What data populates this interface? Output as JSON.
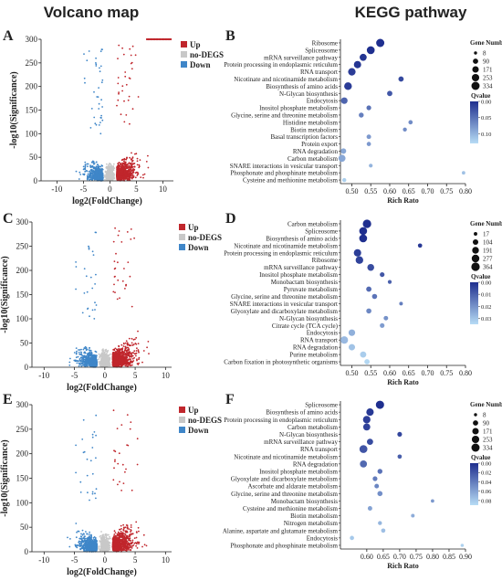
{
  "headers": {
    "left": "Volcano map",
    "right": "KEGG pathway"
  },
  "colors": {
    "up": "#c0262c",
    "nodeg": "#c8c8c8",
    "down": "#3f86c8",
    "dot_high": "#1f2f8f",
    "dot_low": "#b7dcf5"
  },
  "chart_data": [
    {
      "type": "scatter",
      "panel": "A",
      "name": "volcano-A",
      "xlabel": "log2(FoldChange)",
      "ylabel": "-log10(Significance)",
      "xlim": [
        -13,
        12
      ],
      "ylim": [
        0,
        300
      ],
      "xticks": [
        "-10",
        "-5",
        "0",
        "5",
        "10"
      ],
      "yticks": [
        "0",
        "50",
        "100",
        "150",
        "200",
        "250",
        "300"
      ],
      "legend": {
        "position": "top-right",
        "entries": [
          "Up",
          "no-DEGS",
          "Down"
        ]
      },
      "cap_x": [
        7,
        11.5
      ],
      "down_max_x": -1.3
    },
    {
      "type": "scatter",
      "panel": "B",
      "name": "kegg-B",
      "xlabel": "Rich Rato",
      "xlim": [
        0.47,
        0.8
      ],
      "xticks": [
        "0.50",
        "0.55",
        "0.60",
        "0.65",
        "0.70",
        "0.75",
        "0.80"
      ],
      "size_title": "Gene Number",
      "size_labels": [
        "8",
        "90",
        "171",
        "253",
        "334"
      ],
      "q_title": "Qvalue",
      "q_labels": [
        "0.00",
        "0.05",
        "0.10"
      ],
      "q_max": 0.13,
      "pathways": [
        "Ribosome",
        "Spliceosome",
        "mRNA surveillance pathway",
        "Protein processing in endoplasmic reticulum",
        "RNA transport",
        "Nicotinate and nicotinamide metabolism",
        "Biosynthesis of amino acids",
        "N-Glycan biosynthesis",
        "Endocytosis",
        "Inositol phosphate metabolism",
        "Glycine, serine and threonine metabolism",
        "Histidine metabolism",
        "Biotin metabolism",
        "Basal transcription factors",
        "Protein export",
        "RNA degradation",
        "Carbon metabolism",
        "SNARE interactions in vesicular transport",
        "Phosphonate and phosphinate metabolism",
        "Cysteine and methionine metabolism"
      ],
      "ratio": [
        0.575,
        0.55,
        0.53,
        0.515,
        0.5,
        0.63,
        0.49,
        0.6,
        0.48,
        0.545,
        0.525,
        0.655,
        0.64,
        0.545,
        0.545,
        0.478,
        0.474,
        0.55,
        0.795,
        0.48
      ],
      "genes": [
        334,
        300,
        220,
        240,
        260,
        90,
        280,
        90,
        180,
        60,
        70,
        40,
        30,
        50,
        40,
        100,
        220,
        25,
        15,
        30
      ],
      "qvalue": [
        0.0,
        0.0,
        0.005,
        0.005,
        0.01,
        0.02,
        0.01,
        0.03,
        0.04,
        0.05,
        0.06,
        0.07,
        0.07,
        0.08,
        0.08,
        0.09,
        0.09,
        0.1,
        0.11,
        0.12
      ]
    },
    {
      "type": "scatter",
      "panel": "C",
      "name": "volcano-C",
      "xlabel": "log2(FoldChange)",
      "ylabel": "-log10(Significance)",
      "xlim": [
        -12,
        11
      ],
      "ylim": [
        0,
        300
      ],
      "xticks": [
        "-10",
        "-5",
        "0",
        "5",
        "10"
      ],
      "yticks": [
        "0",
        "50",
        "100",
        "150",
        "200",
        "250",
        "300"
      ],
      "legend": {
        "position": "top-right",
        "entries": [
          "Up",
          "no-DEGS",
          "Down"
        ]
      },
      "cap_x": [
        2,
        2
      ],
      "down_max_x": -1.3
    },
    {
      "type": "scatter",
      "panel": "D",
      "name": "kegg-D",
      "xlabel": "Rich Rato",
      "xlim": [
        0.47,
        0.8
      ],
      "xticks": [
        "0.50",
        "0.55",
        "0.60",
        "0.65",
        "0.70",
        "0.75",
        "0.80"
      ],
      "size_title": "Gene Number",
      "size_labels": [
        "17",
        "104",
        "191",
        "277",
        "364"
      ],
      "q_title": "Qvalue",
      "q_labels": [
        "0.00",
        "0.01",
        "0.02",
        "0.03"
      ],
      "q_max": 0.035,
      "pathways": [
        "Carbon metabolism",
        "Spliceosome",
        "Biosynthesis of amino acids",
        "Nicotinate and nicotinamide metabolism",
        "Protein processing in endoplasmic reticulum",
        "Ribosome",
        "mRNA surveillance pathway",
        "Inositol phosphate metabolism",
        "Monobactam biosynthesis",
        "Pyruvate metabolism",
        "Glycine, serine and threonine metabolism",
        "SNARE interactions in vesicular transport",
        "Glyoxylate and dicarboxylate metabolism",
        "N-Glycan biosynthesis",
        "Citrate cycle (TCA cycle)",
        "Endocytosis",
        "RNA transport",
        "RNA degradation",
        "Purine metabolism",
        "Carbon fixation in photosynthetic organisms"
      ],
      "ratio": [
        0.54,
        0.53,
        0.53,
        0.68,
        0.515,
        0.52,
        0.55,
        0.58,
        0.6,
        0.545,
        0.56,
        0.63,
        0.545,
        0.59,
        0.58,
        0.5,
        0.48,
        0.5,
        0.53,
        0.54
      ],
      "genes": [
        364,
        290,
        300,
        40,
        250,
        270,
        200,
        60,
        25,
        90,
        80,
        20,
        80,
        50,
        60,
        180,
        260,
        160,
        150,
        90
      ],
      "qvalue": [
        0.0,
        0.0,
        0.0,
        0.002,
        0.003,
        0.004,
        0.006,
        0.008,
        0.01,
        0.012,
        0.014,
        0.016,
        0.018,
        0.02,
        0.022,
        0.026,
        0.028,
        0.03,
        0.032,
        0.034
      ]
    },
    {
      "type": "scatter",
      "panel": "E",
      "name": "volcano-E",
      "xlabel": "log2(FoldChange)",
      "ylabel": "-log10(Significance)",
      "xlim": [
        -12,
        11
      ],
      "ylim": [
        0,
        300
      ],
      "xticks": [
        "-10",
        "-5",
        "0",
        "5",
        "10"
      ],
      "yticks": [
        "0",
        "50",
        "100",
        "150",
        "200",
        "250",
        "300"
      ],
      "legend": {
        "position": "top-right",
        "entries": [
          "Up",
          "no-DEGS",
          "Down"
        ]
      },
      "cap_x": [
        2,
        2
      ],
      "down_max_x": -1.3
    },
    {
      "type": "scatter",
      "panel": "F",
      "name": "kegg-F",
      "xlabel": "Rich Rato",
      "xlim": [
        0.52,
        0.9
      ],
      "xticks": [
        "0.60",
        "0.65",
        "0.70",
        "0.75",
        "0.80",
        "0.85",
        "0.90"
      ],
      "size_title": "Gene Number",
      "size_labels": [
        "8",
        "90",
        "171",
        "253",
        "334"
      ],
      "q_title": "Qvalue",
      "q_labels": [
        "0.00",
        "0.02",
        "0.04",
        "0.06",
        "0.08"
      ],
      "q_max": 0.09,
      "pathways": [
        "Spliceosome",
        "Biosynthesis of amino acids",
        "Protein processing in endoplasmic reticulum",
        "Carbon metabolism",
        "N-Glycan biosynthesis",
        "mRNA surveillance pathway",
        "RNA transport",
        "Nicotinate and nicotinamide metabolism",
        "RNA degradation",
        "Inositol phosphate metabolism",
        "Glyoxylate and dicarboxylate metabolism",
        "Ascorbate and aldarate metabolism",
        "Glycine, serine and threonine metabolism",
        "Monobactam biosynthesis",
        "Cysteine and methionine metabolism",
        "Biotin metabolism",
        "Nitrogen metabolism",
        "Alanine, aspartate and glutamate metabolism",
        "Endocytosis",
        "Phosphonate and phosphinate metabolism"
      ],
      "ratio": [
        0.64,
        0.61,
        0.6,
        0.6,
        0.7,
        0.61,
        0.59,
        0.7,
        0.59,
        0.64,
        0.625,
        0.63,
        0.64,
        0.8,
        0.61,
        0.74,
        0.64,
        0.65,
        0.555,
        0.89
      ],
      "genes": [
        334,
        250,
        260,
        220,
        60,
        150,
        300,
        40,
        220,
        70,
        60,
        50,
        80,
        15,
        50,
        20,
        30,
        40,
        40,
        10
      ],
      "qvalue": [
        0.0,
        0.005,
        0.008,
        0.01,
        0.012,
        0.015,
        0.02,
        0.025,
        0.03,
        0.035,
        0.04,
        0.045,
        0.05,
        0.055,
        0.06,
        0.065,
        0.07,
        0.075,
        0.08,
        0.085
      ]
    }
  ]
}
